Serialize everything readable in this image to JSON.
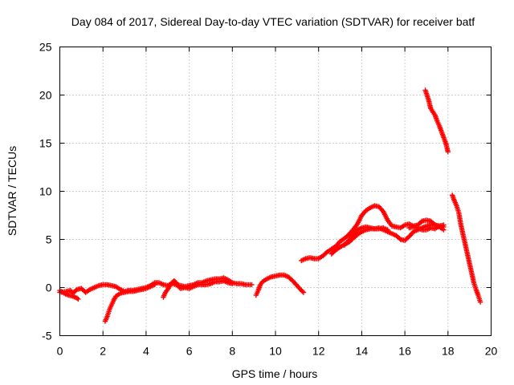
{
  "chart_data": {
    "type": "scatter",
    "title": "Day 084 of 2017, Sidereal Day-to-day VTEC variation (SDTVAR) for receiver batf",
    "xlabel": "GPS time / hours",
    "ylabel": "SDTVAR / TECUs",
    "xlim": [
      0,
      20
    ],
    "ylim": [
      -5,
      25
    ],
    "grid": true,
    "marker": "plus",
    "x_ticks": [
      {
        "value": 0,
        "label": "0"
      },
      {
        "value": 2,
        "label": "2"
      },
      {
        "value": 4,
        "label": "4"
      },
      {
        "value": 6,
        "label": "6"
      },
      {
        "value": 8,
        "label": "8"
      },
      {
        "value": 10,
        "label": "10"
      },
      {
        "value": 12,
        "label": "12"
      },
      {
        "value": 14,
        "label": "14"
      },
      {
        "value": 16,
        "label": "16"
      },
      {
        "value": 18,
        "label": "18"
      },
      {
        "value": 20,
        "label": "20"
      }
    ],
    "y_ticks": [
      {
        "value": -5,
        "label": "-5"
      },
      {
        "value": 0,
        "label": "0"
      },
      {
        "value": 5,
        "label": "5"
      },
      {
        "value": 10,
        "label": "10"
      },
      {
        "value": 15,
        "label": "15"
      },
      {
        "value": 20,
        "label": "20"
      },
      {
        "value": 25,
        "label": "25"
      }
    ],
    "series": [
      {
        "name": "SDTVAR",
        "color": "#ff0000",
        "tracks": [
          [
            [
              0.0,
              -0.3
            ],
            [
              0.2,
              -0.6
            ],
            [
              0.4,
              -0.8
            ],
            [
              0.6,
              -0.9
            ],
            [
              0.8,
              -1.1
            ],
            [
              0.85,
              -1.2
            ]
          ],
          [
            [
              0.0,
              -0.5
            ],
            [
              0.3,
              -0.4
            ],
            [
              0.5,
              -0.3
            ],
            [
              0.6,
              -0.6
            ],
            [
              0.8,
              -0.2
            ],
            [
              1.0,
              -0.1
            ],
            [
              1.2,
              -0.5
            ],
            [
              1.4,
              -0.2
            ],
            [
              1.6,
              0.0
            ],
            [
              1.8,
              0.2
            ],
            [
              2.0,
              0.3
            ],
            [
              2.2,
              0.3
            ],
            [
              2.4,
              0.2
            ],
            [
              2.6,
              0.1
            ],
            [
              2.8,
              -0.2
            ],
            [
              3.0,
              -0.4
            ],
            [
              3.2,
              -0.3
            ],
            [
              3.4,
              -0.3
            ],
            [
              3.6,
              -0.2
            ],
            [
              3.8,
              -0.1
            ],
            [
              4.0,
              0.0
            ],
            [
              4.2,
              0.2
            ],
            [
              4.4,
              0.5
            ],
            [
              4.6,
              0.5
            ],
            [
              4.8,
              0.3
            ],
            [
              5.0,
              0.2
            ],
            [
              5.2,
              0.4
            ],
            [
              5.4,
              0.3
            ],
            [
              5.6,
              0.2
            ],
            [
              5.8,
              0.1
            ],
            [
              6.0,
              0.2
            ],
            [
              6.2,
              0.3
            ],
            [
              6.4,
              0.5
            ],
            [
              6.6,
              0.5
            ],
            [
              6.8,
              0.7
            ],
            [
              7.0,
              0.8
            ],
            [
              7.2,
              0.9
            ],
            [
              7.4,
              0.9
            ],
            [
              7.6,
              1.0
            ],
            [
              7.8,
              0.8
            ],
            [
              8.0,
              0.5
            ],
            [
              8.2,
              0.4
            ],
            [
              8.4,
              0.4
            ],
            [
              8.6,
              0.3
            ],
            [
              8.9,
              0.3
            ]
          ],
          [
            [
              4.8,
              -1.0
            ],
            [
              4.9,
              -0.5
            ],
            [
              5.0,
              -0.2
            ],
            [
              5.1,
              0.2
            ],
            [
              5.2,
              0.5
            ],
            [
              5.3,
              0.7
            ],
            [
              5.4,
              0.5
            ],
            [
              5.5,
              0.1
            ],
            [
              5.6,
              -0.1
            ],
            [
              5.8,
              0.0
            ],
            [
              6.0,
              -0.1
            ],
            [
              6.2,
              0.1
            ],
            [
              6.4,
              0.3
            ],
            [
              6.6,
              0.3
            ],
            [
              6.8,
              0.3
            ],
            [
              7.0,
              0.4
            ],
            [
              7.2,
              0.6
            ],
            [
              7.4,
              0.6
            ],
            [
              7.6,
              0.7
            ],
            [
              7.8,
              0.5
            ],
            [
              8.0,
              0.4
            ]
          ],
          [
            [
              2.1,
              -3.5
            ],
            [
              2.2,
              -3.0
            ],
            [
              2.3,
              -2.3
            ],
            [
              2.4,
              -1.8
            ],
            [
              2.5,
              -1.3
            ],
            [
              2.6,
              -0.9
            ],
            [
              2.8,
              -0.6
            ],
            [
              3.0,
              -0.5
            ],
            [
              3.2,
              -0.4
            ],
            [
              3.4,
              -0.4
            ],
            [
              3.6,
              -0.3
            ],
            [
              3.8,
              -0.2
            ],
            [
              4.0,
              -0.1
            ],
            [
              4.2,
              0.1
            ],
            [
              4.4,
              0.3
            ]
          ],
          [
            [
              9.1,
              -0.8
            ],
            [
              9.2,
              -0.3
            ],
            [
              9.3,
              0.3
            ],
            [
              9.4,
              0.6
            ],
            [
              9.6,
              0.9
            ],
            [
              9.8,
              1.1
            ],
            [
              10.0,
              1.2
            ],
            [
              10.2,
              1.3
            ],
            [
              10.4,
              1.3
            ],
            [
              10.6,
              1.1
            ],
            [
              10.8,
              0.7
            ],
            [
              11.0,
              0.2
            ],
            [
              11.2,
              -0.3
            ],
            [
              11.3,
              -0.5
            ]
          ],
          [
            [
              11.2,
              2.8
            ],
            [
              11.4,
              3.0
            ],
            [
              11.6,
              3.1
            ],
            [
              11.8,
              3.0
            ],
            [
              12.0,
              3.0
            ],
            [
              12.2,
              3.3
            ],
            [
              12.4,
              3.7
            ],
            [
              12.6,
              4.0
            ],
            [
              12.8,
              4.3
            ],
            [
              13.0,
              4.8
            ],
            [
              13.2,
              5.1
            ],
            [
              13.4,
              5.5
            ],
            [
              13.6,
              6.0
            ],
            [
              13.8,
              6.6
            ],
            [
              14.0,
              7.5
            ],
            [
              14.2,
              8.0
            ],
            [
              14.4,
              8.3
            ],
            [
              14.6,
              8.5
            ],
            [
              14.8,
              8.4
            ],
            [
              15.0,
              7.9
            ],
            [
              15.2,
              7.0
            ],
            [
              15.4,
              6.4
            ],
            [
              15.6,
              6.3
            ],
            [
              15.8,
              6.2
            ],
            [
              16.0,
              6.5
            ],
            [
              16.2,
              6.6
            ],
            [
              16.4,
              6.4
            ],
            [
              16.6,
              6.5
            ],
            [
              16.8,
              6.9
            ],
            [
              17.0,
              7.0
            ],
            [
              17.2,
              6.9
            ],
            [
              17.4,
              6.5
            ],
            [
              17.6,
              6.3
            ],
            [
              17.8,
              6.0
            ]
          ],
          [
            [
              12.6,
              3.5
            ],
            [
              12.8,
              3.9
            ],
            [
              13.0,
              4.2
            ],
            [
              13.2,
              4.5
            ],
            [
              13.4,
              4.7
            ],
            [
              13.6,
              5.1
            ],
            [
              13.8,
              5.5
            ],
            [
              14.0,
              5.8
            ],
            [
              14.2,
              6.0
            ],
            [
              14.4,
              6.1
            ],
            [
              14.6,
              6.1
            ],
            [
              14.8,
              6.2
            ],
            [
              15.0,
              6.0
            ],
            [
              15.2,
              5.8
            ],
            [
              15.4,
              5.6
            ],
            [
              15.6,
              5.4
            ],
            [
              15.8,
              5.0
            ],
            [
              16.0,
              4.9
            ],
            [
              16.2,
              5.3
            ],
            [
              16.4,
              5.8
            ],
            [
              16.6,
              6.0
            ],
            [
              16.8,
              6.2
            ],
            [
              17.0,
              6.4
            ],
            [
              17.2,
              6.5
            ],
            [
              17.4,
              6.5
            ],
            [
              17.6,
              6.4
            ],
            [
              17.8,
              6.3
            ]
          ],
          [
            [
              13.2,
              4.4
            ],
            [
              13.4,
              4.9
            ],
            [
              13.6,
              5.5
            ],
            [
              13.8,
              6.0
            ],
            [
              14.0,
              6.2
            ],
            [
              14.2,
              6.3
            ],
            [
              14.4,
              6.2
            ],
            [
              14.6,
              6.1
            ],
            [
              14.8,
              6.1
            ],
            [
              15.0,
              6.2
            ],
            [
              15.2,
              6.0
            ]
          ],
          [
            [
              16.2,
              6.2
            ],
            [
              16.4,
              6.3
            ],
            [
              16.6,
              6.2
            ],
            [
              16.8,
              6.0
            ],
            [
              17.0,
              6.0
            ],
            [
              17.2,
              6.2
            ],
            [
              17.4,
              6.1
            ],
            [
              17.6,
              6.4
            ],
            [
              17.8,
              6.5
            ]
          ],
          [
            [
              16.95,
              20.5
            ],
            [
              17.1,
              19.5
            ],
            [
              17.2,
              18.6
            ],
            [
              17.4,
              17.9
            ],
            [
              17.5,
              17.3
            ],
            [
              17.6,
              16.8
            ],
            [
              17.7,
              16.2
            ],
            [
              17.8,
              15.6
            ],
            [
              17.9,
              15.0
            ],
            [
              18.0,
              14.1
            ]
          ],
          [
            [
              18.2,
              9.6
            ],
            [
              18.3,
              9.0
            ],
            [
              18.4,
              8.5
            ],
            [
              18.5,
              7.8
            ],
            [
              18.6,
              6.5
            ],
            [
              18.7,
              5.5
            ],
            [
              18.8,
              4.5
            ],
            [
              18.9,
              3.5
            ],
            [
              19.0,
              2.5
            ],
            [
              19.1,
              1.5
            ],
            [
              19.2,
              0.5
            ],
            [
              19.3,
              -0.2
            ],
            [
              19.4,
              -0.8
            ],
            [
              19.5,
              -1.5
            ]
          ]
        ]
      }
    ]
  }
}
